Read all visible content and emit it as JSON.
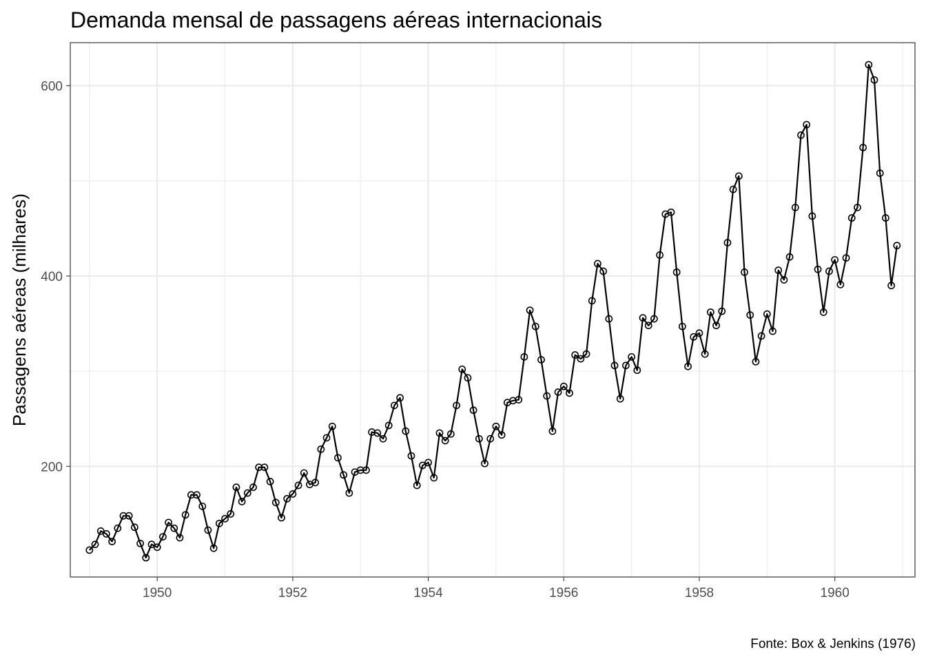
{
  "chart_data": {
    "type": "line",
    "title": "Demanda mensal de passagens aéreas internacionais",
    "xlabel": "",
    "ylabel": "Passagens aéreas (milhares)",
    "caption": "Fonte: Box & Jenkins (1976)",
    "x_start": "1949-01",
    "x_frequency": "monthly",
    "xlim": [
      1948.9,
      1961.0
    ],
    "ylim": [
      104,
      622
    ],
    "x_ticks": [
      1950,
      1952,
      1954,
      1956,
      1958,
      1960
    ],
    "y_ticks": [
      200,
      400,
      600
    ],
    "grid": true,
    "markers": "open-circle",
    "series": [
      {
        "values": [
          112,
          118,
          132,
          129,
          121,
          135,
          148,
          148,
          136,
          119,
          104,
          118,
          115,
          126,
          141,
          135,
          125,
          149,
          170,
          170,
          158,
          133,
          114,
          140,
          145,
          150,
          178,
          163,
          172,
          178,
          199,
          199,
          184,
          162,
          146,
          166,
          171,
          180,
          193,
          181,
          183,
          218,
          230,
          242,
          209,
          191,
          172,
          194,
          196,
          196,
          236,
          235,
          229,
          243,
          264,
          272,
          237,
          211,
          180,
          201,
          204,
          188,
          235,
          227,
          234,
          264,
          302,
          293,
          259,
          229,
          203,
          229,
          242,
          233,
          267,
          269,
          270,
          315,
          364,
          347,
          312,
          274,
          237,
          278,
          284,
          277,
          317,
          313,
          318,
          374,
          413,
          405,
          355,
          306,
          271,
          306,
          315,
          301,
          356,
          348,
          355,
          422,
          465,
          467,
          404,
          347,
          305,
          336,
          340,
          318,
          362,
          348,
          363,
          435,
          491,
          505,
          404,
          359,
          310,
          337,
          360,
          342,
          406,
          396,
          420,
          472,
          548,
          559,
          463,
          407,
          362,
          405,
          417,
          391,
          419,
          461,
          472,
          535,
          622,
          606,
          508,
          461,
          390,
          432
        ]
      }
    ],
    "colors": {
      "line": "#000000",
      "grid": "#ebebeb",
      "panel_border": "#333333"
    }
  }
}
